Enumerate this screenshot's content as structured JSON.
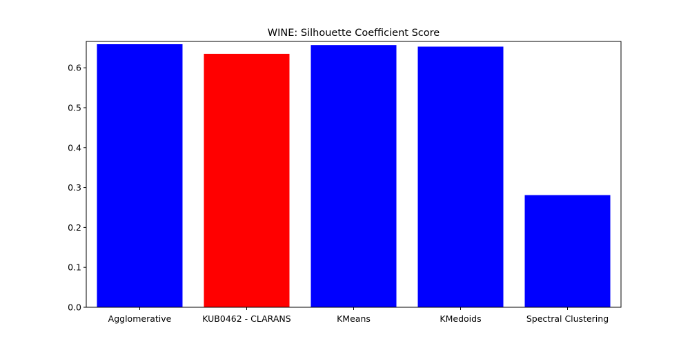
{
  "chart_data": {
    "type": "bar",
    "title": "WINE: Silhouette Coefficient Score",
    "xlabel": "",
    "ylabel": "",
    "categories": [
      "Agglomerative",
      "KUB0462 - CLARANS",
      "KMeans",
      "KMedoids",
      "Spectral Clustering"
    ],
    "values": [
      0.659,
      0.635,
      0.657,
      0.653,
      0.281
    ],
    "bar_colors": [
      "#0000ff",
      "#ff0000",
      "#0000ff",
      "#0000ff",
      "#0000ff"
    ],
    "ylim": [
      0,
      0.666
    ],
    "yticks": [
      0.0,
      0.1,
      0.2,
      0.3,
      0.4,
      0.5,
      0.6
    ],
    "ytick_labels": [
      "0.0",
      "0.1",
      "0.2",
      "0.3",
      "0.4",
      "0.5",
      "0.6"
    ],
    "grid": false,
    "legend": "none"
  }
}
